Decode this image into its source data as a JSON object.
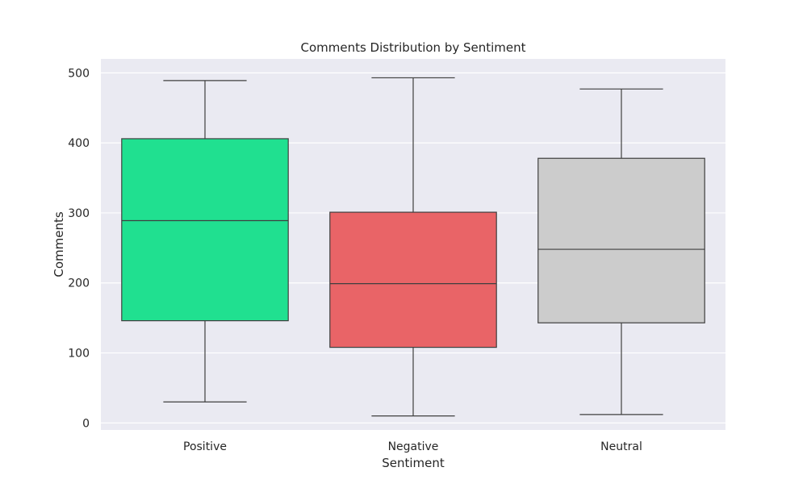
{
  "chart_data": {
    "type": "box",
    "title": "Comments Distribution by Sentiment",
    "xlabel": "Sentiment",
    "ylabel": "Comments",
    "ylim": [
      -10,
      520
    ],
    "yticks": [
      0,
      100,
      200,
      300,
      400,
      500
    ],
    "grid": true,
    "background": "#eaeaf2",
    "series": [
      {
        "category": "Positive",
        "color": "#20e090",
        "min": 30,
        "q1": 146,
        "median": 289,
        "q3": 406,
        "max": 489
      },
      {
        "category": "Negative",
        "color": "#e96467",
        "min": 10,
        "q1": 108,
        "median": 199,
        "q3": 301,
        "max": 493
      },
      {
        "category": "Neutral",
        "color": "#cccccc",
        "min": 12,
        "q1": 143,
        "median": 248,
        "q3": 378,
        "max": 477
      }
    ]
  }
}
